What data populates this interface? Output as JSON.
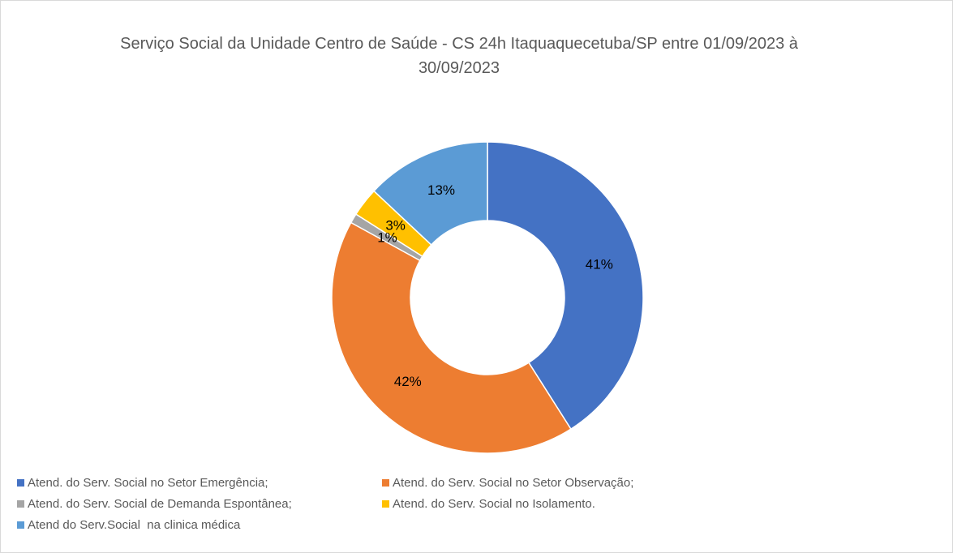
{
  "chart_data": {
    "type": "donut",
    "title": "Serviço Social da Unidade Centro de Saúde - CS 24h Itaquaquecetuba/SP entre 01/09/2023 à 30/09/2023",
    "categories": [
      "Atend. do Serv. Social no Setor Emergência;",
      "Atend. do Serv. Social no Setor Observação;",
      "Atend. do Serv. Social de Demanda Espontânea;",
      "Atend. do Serv. Social no Isolamento.",
      "Atend do Serv.Social  na clinica médica"
    ],
    "values": [
      41,
      42,
      1,
      3,
      13
    ],
    "value_labels": [
      "41%",
      "42%",
      "1%",
      "3%",
      "13%"
    ],
    "colors": [
      "#4472c4",
      "#ed7d31",
      "#a5a5a5",
      "#ffc000",
      "#5b9bd5"
    ],
    "legend": "bottom"
  }
}
